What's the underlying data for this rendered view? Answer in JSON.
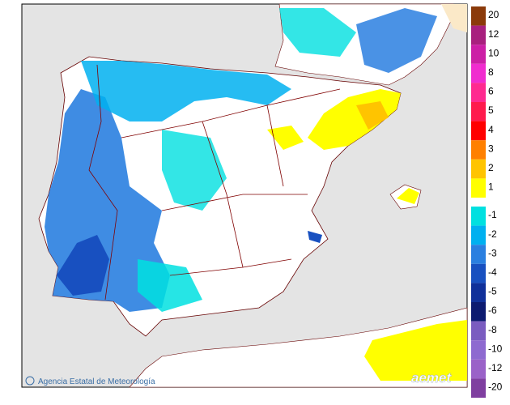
{
  "map": {
    "credit": "Agencia Estatal de Meteorología",
    "logo": "aemet"
  },
  "legend": {
    "warm": [
      {
        "value": 20,
        "color": "#8b3a0a"
      },
      {
        "value": 12,
        "color": "#a8207e"
      },
      {
        "value": 10,
        "color": "#cc1fa6"
      },
      {
        "value": 8,
        "color": "#f02ccf"
      },
      {
        "value": 6,
        "color": "#ff2a90"
      },
      {
        "value": 5,
        "color": "#ff1a4d"
      },
      {
        "value": 4,
        "color": "#ff0000"
      },
      {
        "value": 3,
        "color": "#ff8000"
      },
      {
        "value": 2,
        "color": "#ffc400"
      },
      {
        "value": 1,
        "color": "#ffff00"
      }
    ],
    "cold": [
      {
        "value": -1,
        "color": "#00e0e0"
      },
      {
        "value": -2,
        "color": "#00b0f0"
      },
      {
        "value": -3,
        "color": "#2a7fe0"
      },
      {
        "value": -4,
        "color": "#1850c0"
      },
      {
        "value": -5,
        "color": "#10309a"
      },
      {
        "value": -6,
        "color": "#0c1a70"
      },
      {
        "value": -8,
        "color": "#7a5cc0"
      },
      {
        "value": -10,
        "color": "#8e6ad0"
      },
      {
        "value": -12,
        "color": "#9a62c8"
      },
      {
        "value": -20,
        "color": "#7f3fa0"
      }
    ]
  }
}
